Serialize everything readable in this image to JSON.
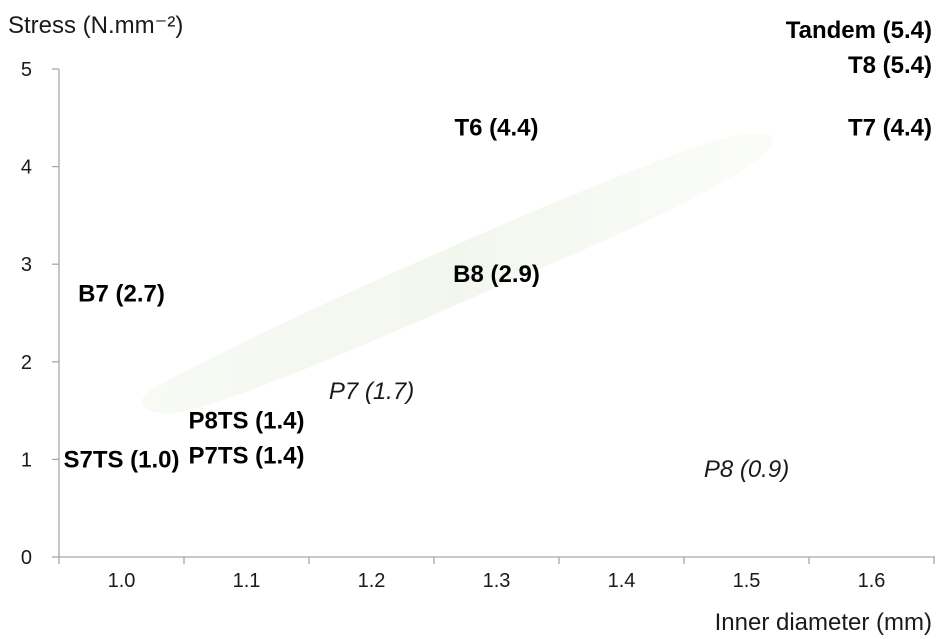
{
  "chart_data": {
    "type": "scatter",
    "title": "",
    "xlabel": "Inner diameter (mm)",
    "ylabel": "Stress (N.mm⁻²)",
    "categories": [
      "1.0",
      "1.1",
      "1.2",
      "1.3",
      "1.4",
      "1.5",
      "1.6"
    ],
    "yticks": [
      "0",
      "1",
      "2",
      "3",
      "4",
      "5"
    ],
    "ylim": [
      0,
      5
    ],
    "grid": false,
    "points": [
      {
        "label": "Tandem (5.4)",
        "x": "1.6",
        "y": 5.4,
        "style": "bold"
      },
      {
        "label": "T8 (5.4)",
        "x": "1.6",
        "y": 5.4,
        "style": "bold"
      },
      {
        "label": "T7 (4.4)",
        "x": "1.6",
        "y": 4.4,
        "style": "bold"
      },
      {
        "label": "T6 (4.4)",
        "x": "1.3",
        "y": 4.4,
        "style": "bold"
      },
      {
        "label": "B8 (2.9)",
        "x": "1.3",
        "y": 2.9,
        "style": "bold"
      },
      {
        "label": "B7 (2.7)",
        "x": "1.0",
        "y": 2.7,
        "style": "bold"
      },
      {
        "label": "P7 (1.7)",
        "x": "1.2",
        "y": 1.7,
        "style": "italic"
      },
      {
        "label": "P8TS (1.4)",
        "x": "1.1",
        "y": 1.4,
        "style": "bold"
      },
      {
        "label": "P7TS (1.4)",
        "x": "1.1",
        "y": 1.4,
        "style": "bold"
      },
      {
        "label": "S7TS (1.0)",
        "x": "1.0",
        "y": 1.0,
        "style": "bold"
      },
      {
        "label": "P8 (0.9)",
        "x": "1.5",
        "y": 0.9,
        "style": "italic"
      }
    ]
  }
}
